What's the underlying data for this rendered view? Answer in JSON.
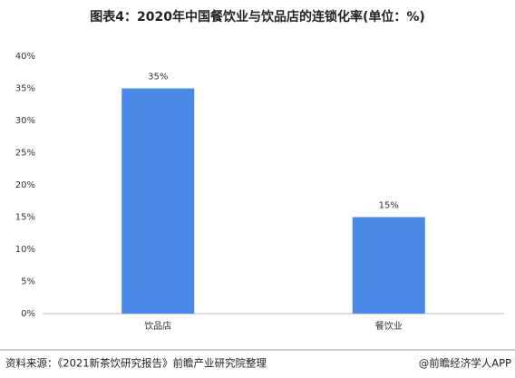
{
  "chart_data": {
    "type": "bar",
    "title": "图表4：2020年中国餐饮业与饮品店的连锁化率(单位：%)",
    "categories": [
      "饮品店",
      "餐饮业"
    ],
    "values": [
      35,
      15
    ],
    "value_labels": [
      "35%",
      "15%"
    ],
    "color": "#4a89e8",
    "ylim": [
      0,
      40
    ],
    "yticks": [
      {
        "value": 0,
        "label": "0%"
      },
      {
        "value": 5,
        "label": "5%"
      },
      {
        "value": 10,
        "label": "10%"
      },
      {
        "value": 15,
        "label": "15%"
      },
      {
        "value": 20,
        "label": "20%"
      },
      {
        "value": 25,
        "label": "25%"
      },
      {
        "value": 30,
        "label": "30%"
      },
      {
        "value": 35,
        "label": "35%"
      },
      {
        "value": 40,
        "label": "40%"
      }
    ],
    "grid": false,
    "source": "资料来源：《2021新茶饮研究报告》前瞻产业研究院整理",
    "credit": "@前瞻经济学人APP"
  }
}
